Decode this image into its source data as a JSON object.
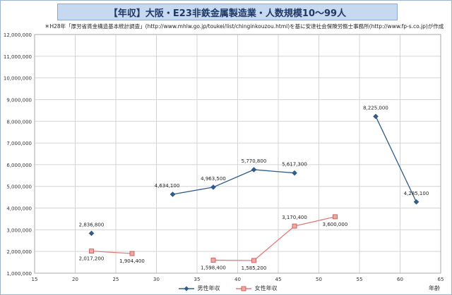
{
  "title": "【年収】大阪・E23非鉄金属製造業・人数規模10〜99人",
  "subtitle": "＊H28年「厚労省賃金構造基本統計調査」(http://www.mhlw.go.jp/toukei/list/chinginkouzou.html)を基に安達社会保険労務士事務所(http://www.fp-s.co.jp)が作成",
  "chart_data": {
    "type": "line",
    "title": "【年収】大阪・E23非鉄金属製造業・人数規模10〜99人",
    "xlabel": "年齢",
    "ylabel": "",
    "xlim": [
      15,
      65
    ],
    "ylim": [
      1000000,
      12000000
    ],
    "xticks": [
      15,
      20,
      25,
      30,
      35,
      40,
      45,
      50,
      55,
      60,
      65
    ],
    "yticks": [
      1000000,
      2000000,
      3000000,
      4000000,
      5000000,
      6000000,
      7000000,
      8000000,
      9000000,
      10000000,
      11000000,
      12000000
    ],
    "grid": true,
    "legend_position": "bottom",
    "series": [
      {
        "name": "男性年収",
        "color": "#2e5d8e",
        "marker": "diamond",
        "points": [
          {
            "x": 22,
            "y": 2836800,
            "label": "2,836,800"
          },
          {
            "x": 32,
            "y": 4634100,
            "label": "4,634,100"
          },
          {
            "x": 37,
            "y": 4963500,
            "label": "4,963,500"
          },
          {
            "x": 42,
            "y": 5770800,
            "label": "5,770,800"
          },
          {
            "x": 47,
            "y": 5617300,
            "label": "5,617,300"
          },
          {
            "x": 57,
            "y": 8225000,
            "label": "8,225,000"
          },
          {
            "x": 62,
            "y": 4285100,
            "label": "4,285,100"
          }
        ],
        "segments": [
          [
            1,
            2,
            3,
            4
          ],
          [
            5,
            6
          ]
        ]
      },
      {
        "name": "女性年収",
        "color": "#e27a7a",
        "marker": "square",
        "points": [
          {
            "x": 22,
            "y": 2017200,
            "label": "2,017,200"
          },
          {
            "x": 27,
            "y": 1904400,
            "label": "1,904,400"
          },
          {
            "x": 37,
            "y": 1598400,
            "label": "1,598,400"
          },
          {
            "x": 42,
            "y": 1585200,
            "label": "1,585,200"
          },
          {
            "x": 47,
            "y": 3170400,
            "label": "3,170,400"
          },
          {
            "x": 52,
            "y": 3600000,
            "label": "3,600,000"
          }
        ],
        "segments": [
          [
            0,
            1
          ],
          [
            2,
            3,
            4,
            5
          ]
        ]
      }
    ]
  }
}
